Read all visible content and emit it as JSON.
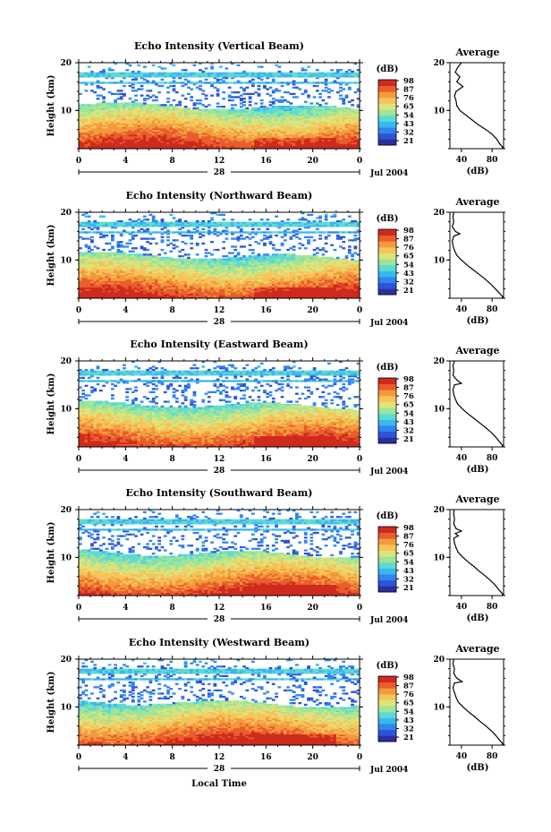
{
  "chart_data": [
    {
      "type": "heatmap",
      "title": "Echo Intensity (Vertical Beam)",
      "ylabel": "Height (km)",
      "yticks": [
        "20",
        "10"
      ],
      "xticks": [
        "0",
        "4",
        "8",
        "12",
        "16",
        "20",
        "0"
      ],
      "date_label": "28",
      "date_suffix": "Jul 2004",
      "colorbar_title": "(dB)",
      "colorbar_ticks": [
        "98",
        "87",
        "76",
        "65",
        "54",
        "43",
        "32",
        "21"
      ],
      "profile_title": "Average",
      "profile_yticks": [
        "20",
        "10"
      ],
      "profile_xticks": [
        "40",
        "80"
      ],
      "profile_xlabel": "(dB)",
      "ylim": [
        2,
        20
      ],
      "xlim": [
        0,
        24
      ],
      "profile": [
        [
          40,
          20
        ],
        [
          35,
          19
        ],
        [
          32,
          18
        ],
        [
          38,
          17
        ],
        [
          34,
          16
        ],
        [
          42,
          15
        ],
        [
          33,
          14
        ],
        [
          31,
          13
        ],
        [
          33,
          12
        ],
        [
          34,
          11
        ],
        [
          38,
          10
        ],
        [
          46,
          9
        ],
        [
          54,
          8
        ],
        [
          62,
          7
        ],
        [
          72,
          6
        ],
        [
          80,
          5
        ],
        [
          86,
          4
        ],
        [
          90,
          3
        ],
        [
          94,
          2.3
        ],
        [
          93,
          2
        ]
      ]
    },
    {
      "type": "heatmap",
      "title": "Echo Intensity (Northward Beam)",
      "ylabel": "Height (km)",
      "yticks": [
        "20",
        "10"
      ],
      "xticks": [
        "0",
        "4",
        "8",
        "12",
        "16",
        "20",
        "0"
      ],
      "date_label": "28",
      "date_suffix": "Jul 2004",
      "colorbar_title": "(dB)",
      "colorbar_ticks": [
        "98",
        "87",
        "76",
        "65",
        "54",
        "43",
        "32",
        "21"
      ],
      "profile_title": "Average",
      "profile_yticks": [
        "20",
        "10"
      ],
      "profile_xticks": [
        "40",
        "80"
      ],
      "profile_xlabel": "(dB)",
      "ylim": [
        2,
        20
      ],
      "xlim": [
        0,
        24
      ],
      "profile": [
        [
          30,
          20
        ],
        [
          29,
          19
        ],
        [
          30,
          18
        ],
        [
          28,
          17
        ],
        [
          32,
          16
        ],
        [
          38,
          15.5
        ],
        [
          30,
          15
        ],
        [
          28,
          14
        ],
        [
          29,
          13
        ],
        [
          31,
          12
        ],
        [
          34,
          11
        ],
        [
          40,
          10
        ],
        [
          47,
          9
        ],
        [
          55,
          8
        ],
        [
          63,
          7
        ],
        [
          71,
          6
        ],
        [
          78,
          5
        ],
        [
          84,
          4
        ],
        [
          90,
          3
        ],
        [
          94,
          2.3
        ],
        [
          93,
          2
        ]
      ]
    },
    {
      "type": "heatmap",
      "title": "Echo Intensity (Eastward Beam)",
      "ylabel": "Height (km)",
      "yticks": [
        "20",
        "10"
      ],
      "xticks": [
        "0",
        "4",
        "8",
        "12",
        "16",
        "20",
        "0"
      ],
      "date_label": "28",
      "date_suffix": "Jul 2004",
      "colorbar_title": "(dB)",
      "colorbar_ticks": [
        "98",
        "87",
        "76",
        "65",
        "54",
        "43",
        "32",
        "21"
      ],
      "profile_title": "Average",
      "profile_yticks": [
        "20",
        "10"
      ],
      "profile_xticks": [
        "40",
        "80"
      ],
      "profile_xlabel": "(dB)",
      "ylim": [
        2,
        20
      ],
      "xlim": [
        0,
        24
      ],
      "profile": [
        [
          31,
          20
        ],
        [
          29,
          19
        ],
        [
          30,
          18
        ],
        [
          29,
          17
        ],
        [
          34,
          16
        ],
        [
          40,
          15.3
        ],
        [
          31,
          15
        ],
        [
          29,
          14
        ],
        [
          30,
          13
        ],
        [
          32,
          12
        ],
        [
          35,
          11
        ],
        [
          41,
          10
        ],
        [
          48,
          9
        ],
        [
          56,
          8
        ],
        [
          64,
          7
        ],
        [
          72,
          6
        ],
        [
          79,
          5
        ],
        [
          85,
          4
        ],
        [
          90,
          3
        ],
        [
          94,
          2.3
        ],
        [
          93,
          2
        ]
      ]
    },
    {
      "type": "heatmap",
      "title": "Echo Intensity (Southward Beam)",
      "ylabel": "Height (km)",
      "yticks": [
        "20",
        "10"
      ],
      "xticks": [
        "0",
        "4",
        "8",
        "12",
        "16",
        "20",
        "0"
      ],
      "date_label": "28",
      "date_suffix": "Jul 2004",
      "colorbar_title": "(dB)",
      "colorbar_ticks": [
        "98",
        "87",
        "76",
        "65",
        "54",
        "43",
        "32",
        "21"
      ],
      "profile_title": "Average",
      "profile_yticks": [
        "20",
        "10"
      ],
      "profile_xticks": [
        "40",
        "80"
      ],
      "profile_xlabel": "(dB)",
      "ylim": [
        2,
        20
      ],
      "xlim": [
        0,
        24
      ],
      "profile": [
        [
          30,
          20
        ],
        [
          30,
          19
        ],
        [
          31,
          18
        ],
        [
          30,
          17
        ],
        [
          33,
          16
        ],
        [
          40,
          15.5
        ],
        [
          32,
          15
        ],
        [
          36,
          14.5
        ],
        [
          30,
          14
        ],
        [
          31,
          13
        ],
        [
          33,
          12
        ],
        [
          36,
          11
        ],
        [
          42,
          10
        ],
        [
          49,
          9
        ],
        [
          57,
          8
        ],
        [
          64,
          7
        ],
        [
          72,
          6
        ],
        [
          79,
          5
        ],
        [
          85,
          4
        ],
        [
          90,
          3
        ],
        [
          94,
          2.3
        ],
        [
          93,
          2
        ]
      ]
    },
    {
      "type": "heatmap",
      "title": "Echo Intensity (Westward Beam)",
      "ylabel": "Height (km)",
      "yticks": [
        "20",
        "10"
      ],
      "xticks": [
        "0",
        "4",
        "8",
        "12",
        "16",
        "20",
        "0"
      ],
      "date_label": "28",
      "date_suffix": "Jul 2004",
      "colorbar_title": "(dB)",
      "colorbar_ticks": [
        "98",
        "87",
        "76",
        "65",
        "54",
        "43",
        "32",
        "21"
      ],
      "profile_title": "Average",
      "profile_yticks": [
        "20",
        "10"
      ],
      "profile_xticks": [
        "40",
        "80"
      ],
      "profile_xlabel": "(dB)",
      "ylim": [
        2,
        20
      ],
      "xlim": [
        0,
        24
      ],
      "profile": [
        [
          30,
          20
        ],
        [
          29,
          19
        ],
        [
          31,
          18
        ],
        [
          30,
          17
        ],
        [
          34,
          16
        ],
        [
          41,
          15.3
        ],
        [
          31,
          15
        ],
        [
          29,
          14
        ],
        [
          31,
          13
        ],
        [
          33,
          12
        ],
        [
          36,
          11
        ],
        [
          42,
          10
        ],
        [
          49,
          9
        ],
        [
          57,
          8
        ],
        [
          64,
          7
        ],
        [
          72,
          6
        ],
        [
          79,
          5
        ],
        [
          85,
          4
        ],
        [
          90,
          3
        ],
        [
          94,
          2.3
        ],
        [
          93,
          2
        ]
      ]
    }
  ],
  "xlabel": "Local Time",
  "colorscale": [
    "#2b2f9e",
    "#2f53d6",
    "#2f86ef",
    "#39b7ef",
    "#5fd9d3",
    "#9de59a",
    "#dde37a",
    "#f6c45a",
    "#f39a3d",
    "#ea5d2c",
    "#cf2a1e"
  ]
}
